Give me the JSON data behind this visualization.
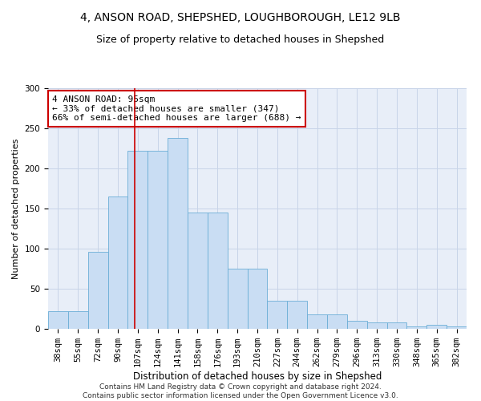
{
  "title1": "4, ANSON ROAD, SHEPSHED, LOUGHBOROUGH, LE12 9LB",
  "title2": "Size of property relative to detached houses in Shepshed",
  "xlabel": "Distribution of detached houses by size in Shepshed",
  "ylabel": "Number of detached properties",
  "categories": [
    "38sqm",
    "55sqm",
    "72sqm",
    "90sqm",
    "107sqm",
    "124sqm",
    "141sqm",
    "158sqm",
    "176sqm",
    "193sqm",
    "210sqm",
    "227sqm",
    "244sqm",
    "262sqm",
    "279sqm",
    "296sqm",
    "313sqm",
    "330sqm",
    "348sqm",
    "365sqm",
    "382sqm"
  ],
  "values": [
    22,
    22,
    96,
    165,
    222,
    222,
    238,
    145,
    145,
    75,
    75,
    35,
    35,
    18,
    18,
    10,
    8,
    8,
    3,
    5,
    3
  ],
  "bar_color": "#c9ddf3",
  "bar_edge_color": "#6baed6",
  "vline_x_index": 3.85,
  "vline_color": "#cc0000",
  "annotation_text": "4 ANSON ROAD: 95sqm\n← 33% of detached houses are smaller (347)\n66% of semi-detached houses are larger (688) →",
  "annotation_box_color": "white",
  "annotation_box_edge_color": "#cc0000",
  "ylim": [
    0,
    300
  ],
  "yticks": [
    0,
    50,
    100,
    150,
    200,
    250,
    300
  ],
  "grid_color": "#c8d4e8",
  "background_color": "#e8eef8",
  "footer_text": "Contains HM Land Registry data © Crown copyright and database right 2024.\nContains public sector information licensed under the Open Government Licence v3.0.",
  "title1_fontsize": 10,
  "title2_fontsize": 9,
  "xlabel_fontsize": 8.5,
  "ylabel_fontsize": 8,
  "tick_fontsize": 7.5,
  "annotation_fontsize": 8,
  "footer_fontsize": 6.5
}
